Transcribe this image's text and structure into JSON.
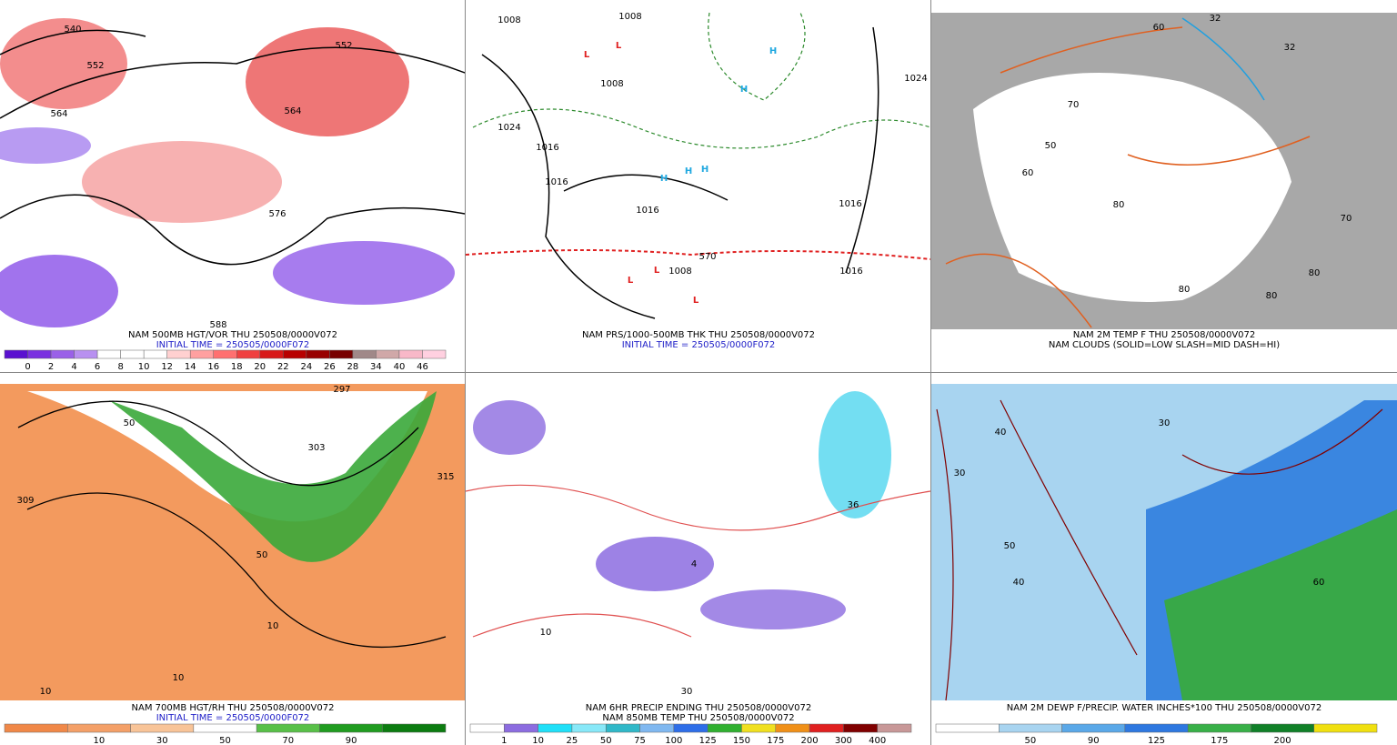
{
  "panels": [
    {
      "caption": [
        "NAM 500MB HGT/VOR THU 250508/0000V072",
        "INITIAL TIME = 250505/0000F072"
      ],
      "colorbar": {
        "labels": [
          "0",
          "2",
          "4",
          "6",
          "8",
          "10",
          "12",
          "14",
          "16",
          "18",
          "20",
          "22",
          "24",
          "26",
          "28",
          "34",
          "40",
          "46"
        ],
        "colors": [
          "#5a10d0",
          "#7a30e0",
          "#9a60e8",
          "#b890f0",
          "#ffffff",
          "#ffffff",
          "#ffffff",
          "#ffd0d0",
          "#ffa0a0",
          "#ff7070",
          "#f04040",
          "#d81818",
          "#b80000",
          "#980000",
          "#780000",
          "#a08888",
          "#d0a8a8",
          "#f8b8c8",
          "#ffd0e0"
        ]
      },
      "map_labels": [
        "540",
        "552",
        "564",
        "552",
        "564",
        "576",
        "588"
      ]
    },
    {
      "caption": [
        "NAM PRS/1000-500MB THK THU 250508/0000V072",
        "INITIAL TIME = 250505/0000F072"
      ],
      "colorbar": null,
      "map_labels": [
        "1008",
        "1008",
        "1008",
        "1024",
        "1016",
        "1016",
        "1016",
        "1016",
        "1008",
        "570",
        "1024",
        "1016",
        "L",
        "L",
        "L",
        "L",
        "L",
        "H",
        "H",
        "H",
        "H",
        "H"
      ]
    },
    {
      "caption": [
        "NAM 2M TEMP F THU 250508/0000V072",
        "NAM CLOUDS (SOLID=LOW SLASH=MID DASH=HI)"
      ],
      "colorbar": null,
      "map_labels": [
        "32",
        "32",
        "60",
        "70",
        "70",
        "80",
        "80",
        "80",
        "80",
        "50",
        "60"
      ]
    },
    {
      "caption": [
        "NAM 700MB HGT/RH THU 250508/0000V072",
        "INITIAL TIME = 250505/0000F072"
      ],
      "colorbar": {
        "labels": [
          "10",
          "30",
          "50",
          "70",
          "90"
        ],
        "colors": [
          "#f08848",
          "#f4a068",
          "#f8c498",
          "#ffffff",
          "#58c048",
          "#209c20",
          "#0c7c10"
        ]
      },
      "map_labels": [
        "297",
        "303",
        "309",
        "315",
        "50",
        "50",
        "10",
        "10",
        "10"
      ]
    },
    {
      "caption": [
        "NAM 6HR PRECIP ENDING THU 250508/0000V072",
        "NAM 850MB TEMP THU 250508/0000V072"
      ],
      "colorbar": {
        "labels": [
          "1",
          "10",
          "25",
          "50",
          "75",
          "100",
          "125",
          "150",
          "175",
          "200",
          "300",
          "400"
        ],
        "colors": [
          "#ffffff",
          "#8c6ce0",
          "#20e0f8",
          "#88e8f8",
          "#30b8c8",
          "#80b8f0",
          "#2e6ee8",
          "#30b030",
          "#f0e020",
          "#f09018",
          "#e02020",
          "#800000",
          "#c89898"
        ]
      },
      "map_labels": [
        "10",
        "30",
        "36",
        "4"
      ]
    },
    {
      "caption": [
        "NAM 2M DEWP F/PRECIP. WATER INCHES*100 THU 250508/0000V072"
      ],
      "colorbar": {
        "labels": [
          "50",
          "90",
          "125",
          "175",
          "200"
        ],
        "colors": [
          "#ffffff",
          "#a8d4f0",
          "#5aa8e8",
          "#2e78e0",
          "#38b048",
          "#108028",
          "#f0e010"
        ]
      },
      "map_labels": [
        "30",
        "40",
        "50",
        "60",
        "40",
        "30"
      ]
    }
  ]
}
